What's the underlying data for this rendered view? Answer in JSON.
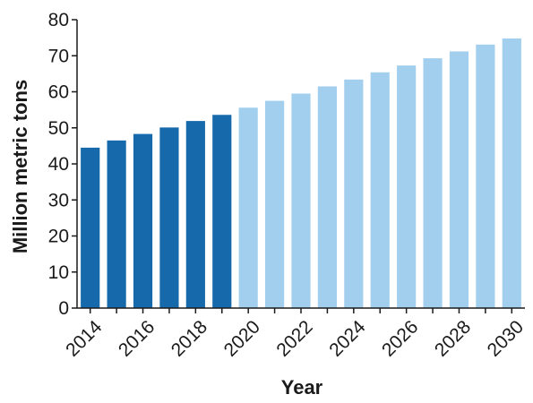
{
  "chart_data": {
    "type": "bar",
    "xlabel": "Year",
    "ylabel": "Million metric tons",
    "ylim": [
      0,
      80
    ],
    "yticks": [
      0,
      10,
      20,
      30,
      40,
      50,
      60,
      70,
      80
    ],
    "categories": [
      "2014",
      "2015",
      "2016",
      "2017",
      "2018",
      "2019",
      "2020",
      "2021",
      "2022",
      "2023",
      "2024",
      "2025",
      "2026",
      "2027",
      "2028",
      "2029",
      "2030"
    ],
    "x_tick_labels": [
      "2014",
      "2016",
      "2018",
      "2020",
      "2022",
      "2024",
      "2026",
      "2028",
      "2030"
    ],
    "values": [
      44.5,
      46.5,
      48.3,
      50.1,
      51.9,
      53.6,
      55.6,
      57.5,
      59.5,
      61.5,
      63.4,
      65.4,
      67.3,
      69.3,
      71.2,
      73.1,
      74.8
    ],
    "grid": false,
    "colors": {
      "historical": "#166aab",
      "projected": "#a3cfee",
      "axis": "#1a1a1a"
    },
    "historical_count": 6
  }
}
